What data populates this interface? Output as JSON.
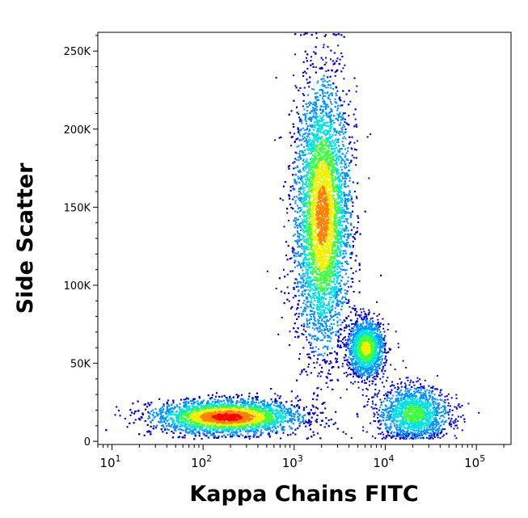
{
  "chart_data": {
    "type": "scatter",
    "title": "",
    "xlabel": "Kappa Chains FITC",
    "ylabel": "Side Scatter",
    "x_scale": "log",
    "y_scale": "linear",
    "xlim": [
      7,
      240000
    ],
    "ylim": [
      -2000,
      262000
    ],
    "grid": false,
    "legend": "none",
    "y_ticks": [
      {
        "value": 0,
        "label": "0"
      },
      {
        "value": 50000,
        "label": "50K"
      },
      {
        "value": 100000,
        "label": "100K"
      },
      {
        "value": 150000,
        "label": "150K"
      },
      {
        "value": 200000,
        "label": "200K"
      },
      {
        "value": 250000,
        "label": "250K"
      }
    ],
    "x_ticks": [
      {
        "value": 10,
        "base": "10",
        "exp": "1"
      },
      {
        "value": 100,
        "base": "10",
        "exp": "2"
      },
      {
        "value": 1000,
        "base": "10",
        "exp": "3"
      },
      {
        "value": 10000,
        "base": "10",
        "exp": "4"
      },
      {
        "value": 100000,
        "base": "10",
        "exp": "5"
      }
    ],
    "density_colormap": [
      "#0000d0",
      "#0090ff",
      "#00e0e0",
      "#40ff40",
      "#f0f000",
      "#ff8000",
      "#ff0000"
    ],
    "populations": [
      {
        "x_center": 2000,
        "y_center": 145000,
        "x_spread_log": 0.15,
        "y_spread": 42000,
        "count": 9000,
        "peak_color": "#ff8000"
      },
      {
        "x_center": 6000,
        "y_center": 60000,
        "x_spread_log": 0.1,
        "y_spread": 9000,
        "count": 1800,
        "peak_color": "#f0f000"
      },
      {
        "x_center": 180,
        "y_center": 16000,
        "x_spread_log": 0.4,
        "y_spread": 5500,
        "count": 7000,
        "peak_color": "#ff0000"
      },
      {
        "x_center": 20000,
        "y_center": 18000,
        "x_spread_log": 0.2,
        "y_spread": 9000,
        "count": 1600,
        "peak_color": "#40ff40"
      }
    ]
  }
}
